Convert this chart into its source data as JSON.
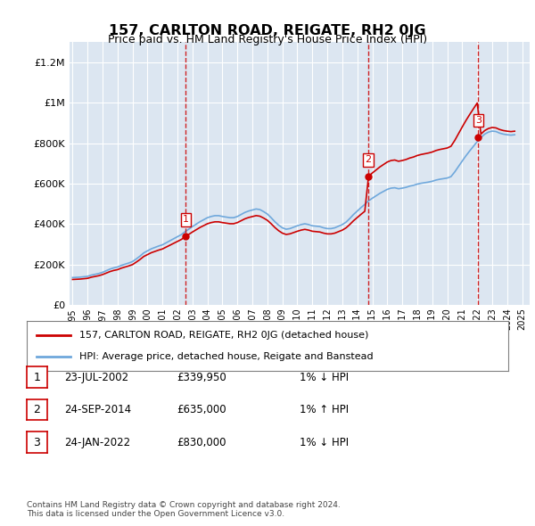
{
  "title": "157, CARLTON ROAD, REIGATE, RH2 0JG",
  "subtitle": "Price paid vs. HM Land Registry's House Price Index (HPI)",
  "ylabel_ticks": [
    "£0",
    "£200K",
    "£400K",
    "£600K",
    "£800K",
    "£1M",
    "£1.2M"
  ],
  "ylim": [
    0,
    1300000
  ],
  "yticks": [
    0,
    200000,
    400000,
    600000,
    800000,
    1000000,
    1200000
  ],
  "x_start_year": 1995,
  "x_end_year": 2025,
  "bg_color": "#dce6f1",
  "plot_bg_color": "#dce6f1",
  "grid_color": "#ffffff",
  "line_color_hpi": "#6fa8dc",
  "line_color_price": "#cc0000",
  "sale_dates": [
    "2002-07-23",
    "2014-09-24",
    "2022-01-24"
  ],
  "sale_prices": [
    339950,
    635000,
    830000
  ],
  "sale_labels": [
    "1",
    "2",
    "3"
  ],
  "sale_label_info": [
    {
      "num": "1",
      "date": "23-JUL-2002",
      "price": "£339,950",
      "pct": "1%",
      "dir": "↓"
    },
    {
      "num": "2",
      "date": "24-SEP-2014",
      "price": "£635,000",
      "pct": "1%",
      "dir": "↑"
    },
    {
      "num": "3",
      "date": "24-JAN-2022",
      "price": "£830,000",
      "pct": "1%",
      "dir": "↓"
    }
  ],
  "legend_line1": "157, CARLTON ROAD, REIGATE, RH2 0JG (detached house)",
  "legend_line2": "HPI: Average price, detached house, Reigate and Banstead",
  "footnote": "Contains HM Land Registry data © Crown copyright and database right 2024.\nThis data is licensed under the Open Government Licence v3.0.",
  "hpi_years": [
    1995.0,
    1995.25,
    1995.5,
    1995.75,
    1996.0,
    1996.25,
    1996.5,
    1996.75,
    1997.0,
    1997.25,
    1997.5,
    1997.75,
    1998.0,
    1998.25,
    1998.5,
    1998.75,
    1999.0,
    1999.25,
    1999.5,
    1999.75,
    2000.0,
    2000.25,
    2000.5,
    2000.75,
    2001.0,
    2001.25,
    2001.5,
    2001.75,
    2002.0,
    2002.25,
    2002.5,
    2002.75,
    2003.0,
    2003.25,
    2003.5,
    2003.75,
    2004.0,
    2004.25,
    2004.5,
    2004.75,
    2005.0,
    2005.25,
    2005.5,
    2005.75,
    2006.0,
    2006.25,
    2006.5,
    2006.75,
    2007.0,
    2007.25,
    2007.5,
    2007.75,
    2008.0,
    2008.25,
    2008.5,
    2008.75,
    2009.0,
    2009.25,
    2009.5,
    2009.75,
    2010.0,
    2010.25,
    2010.5,
    2010.75,
    2011.0,
    2011.25,
    2011.5,
    2011.75,
    2012.0,
    2012.25,
    2012.5,
    2012.75,
    2013.0,
    2013.25,
    2013.5,
    2013.75,
    2014.0,
    2014.25,
    2014.5,
    2014.75,
    2015.0,
    2015.25,
    2015.5,
    2015.75,
    2016.0,
    2016.25,
    2016.5,
    2016.75,
    2017.0,
    2017.25,
    2017.5,
    2017.75,
    2018.0,
    2018.25,
    2018.5,
    2018.75,
    2019.0,
    2019.25,
    2019.5,
    2019.75,
    2020.0,
    2020.25,
    2020.5,
    2020.75,
    2021.0,
    2021.25,
    2021.5,
    2021.75,
    2022.0,
    2022.25,
    2022.5,
    2022.75,
    2023.0,
    2023.25,
    2023.5,
    2023.75,
    2024.0,
    2024.25,
    2024.5
  ],
  "hpi_values": [
    136000,
    137000,
    138000,
    140000,
    142000,
    148000,
    152000,
    156000,
    162000,
    170000,
    178000,
    184000,
    188000,
    196000,
    202000,
    208000,
    215000,
    228000,
    242000,
    258000,
    268000,
    278000,
    285000,
    292000,
    298000,
    308000,
    318000,
    328000,
    338000,
    348000,
    362000,
    375000,
    388000,
    400000,
    412000,
    422000,
    432000,
    438000,
    442000,
    442000,
    438000,
    435000,
    432000,
    432000,
    438000,
    448000,
    458000,
    465000,
    470000,
    475000,
    472000,
    462000,
    450000,
    432000,
    412000,
    395000,
    382000,
    375000,
    378000,
    385000,
    392000,
    398000,
    402000,
    398000,
    392000,
    390000,
    388000,
    382000,
    378000,
    378000,
    382000,
    390000,
    398000,
    410000,
    428000,
    448000,
    465000,
    482000,
    498000,
    515000,
    528000,
    540000,
    552000,
    562000,
    572000,
    578000,
    580000,
    575000,
    578000,
    582000,
    588000,
    592000,
    598000,
    602000,
    605000,
    608000,
    612000,
    618000,
    622000,
    625000,
    628000,
    635000,
    658000,
    685000,
    712000,
    738000,
    762000,
    785000,
    808000,
    828000,
    845000,
    855000,
    860000,
    858000,
    850000,
    845000,
    842000,
    840000,
    842000
  ]
}
